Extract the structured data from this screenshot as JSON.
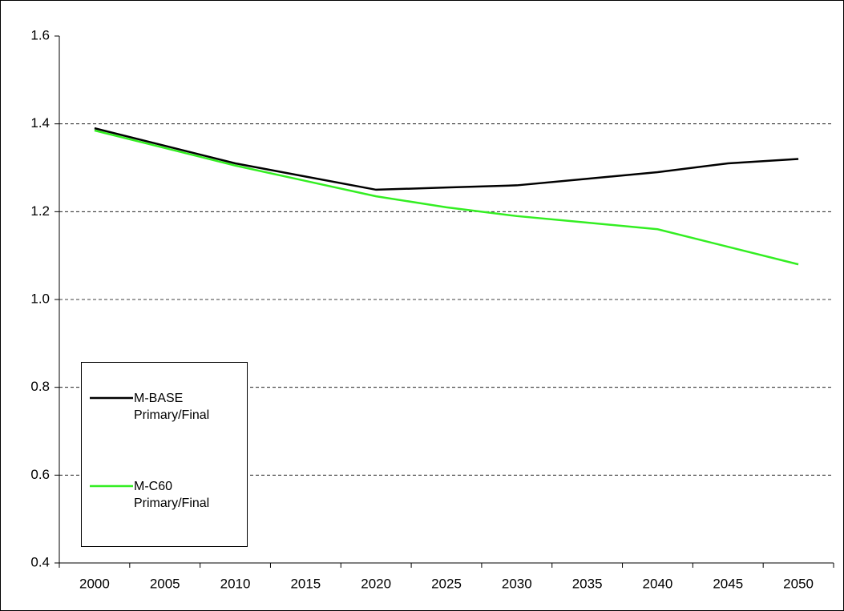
{
  "chart_data": {
    "type": "line",
    "categories": [
      "2000",
      "2005",
      "2010",
      "2015",
      "2020",
      "2025",
      "2030",
      "2035",
      "2040",
      "2045",
      "2050"
    ],
    "series": [
      {
        "name": "M-BASE Primary/Final",
        "color": "#000000",
        "values": [
          1.39,
          1.35,
          1.31,
          1.28,
          1.25,
          1.255,
          1.26,
          1.275,
          1.29,
          1.31,
          1.32
        ]
      },
      {
        "name": "M-C60 Primary/Final",
        "color": "#33ee22",
        "values": [
          1.385,
          1.345,
          1.305,
          1.27,
          1.235,
          1.21,
          1.19,
          1.175,
          1.16,
          1.12,
          1.08
        ]
      }
    ],
    "ylim": [
      0.4,
      1.6
    ],
    "yticks": [
      {
        "value": 0.4,
        "label": "0.4"
      },
      {
        "value": 0.6,
        "label": "0.6"
      },
      {
        "value": 0.8,
        "label": "0.8"
      },
      {
        "value": 1.0,
        "label": "1.0"
      },
      {
        "value": 1.2,
        "label": "1.2"
      },
      {
        "value": 1.4,
        "label": "1.4"
      },
      {
        "value": 1.6,
        "label": "1.6"
      }
    ],
    "grid": true
  }
}
